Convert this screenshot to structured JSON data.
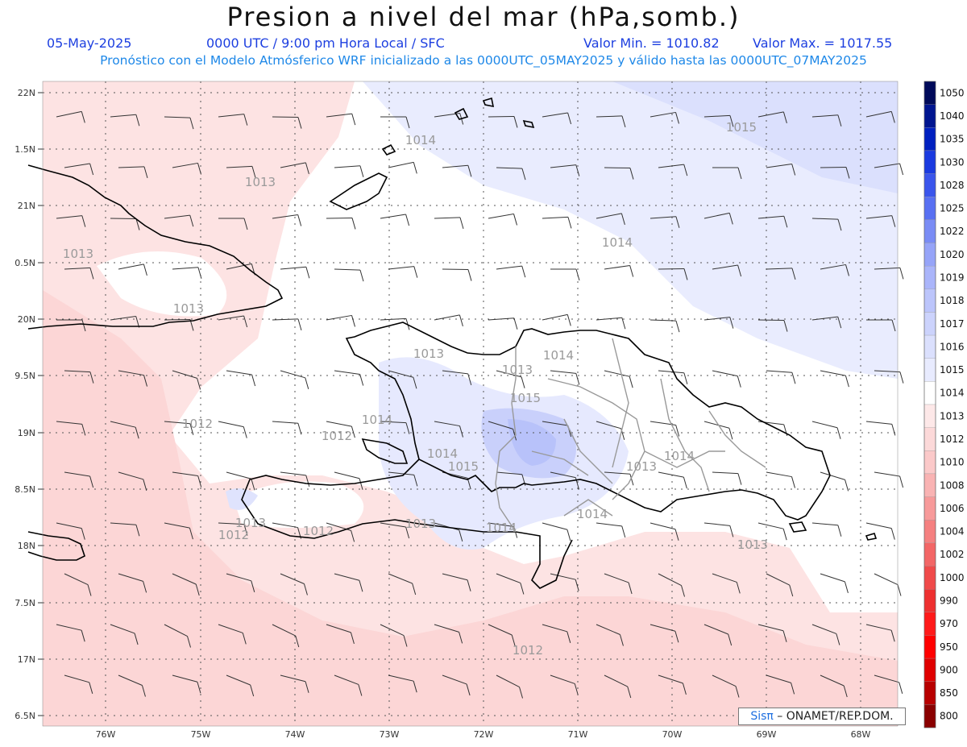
{
  "header": {
    "title": "Presion a nivel del mar (hPa,somb.)",
    "date": "05-May-2025",
    "time": "0000 UTC / 9:00 pm Hora Local / SFC",
    "min_label": "Valor Min. = 1010.82",
    "max_label": "Valor Max. = 1017.55",
    "info": "Pronóstico con el Modelo Atmósferico WRF inicializado a las 0000UTC_05MAY2025 y válido hasta las  0000UTC_07MAY2025"
  },
  "axes": {
    "lat_labels": [
      "22N",
      "1.5N",
      "21N",
      "0.5N",
      "20N",
      "9.5N",
      "19N",
      "8.5N",
      "18N",
      "7.5N",
      "17N",
      "6.5N"
    ],
    "lon_labels": [
      "76W",
      "75W",
      "74W",
      "73W",
      "72W",
      "71W",
      "70W",
      "69W",
      "68W"
    ]
  },
  "colorbar": {
    "labels": [
      "1050",
      "1040",
      "1035",
      "1030",
      "1028",
      "1025",
      "1022",
      "1020",
      "1019",
      "1018",
      "1017",
      "1016",
      "1015",
      "1014",
      "1013",
      "1012",
      "1010",
      "1008",
      "1006",
      "1004",
      "1002",
      "1000",
      "990",
      "970",
      "950",
      "900",
      "850",
      "800"
    ],
    "colors": [
      "#000a5a",
      "#001590",
      "#0020c0",
      "#1a3ae0",
      "#3a55ec",
      "#5870f2",
      "#7a8cf5",
      "#96a4f8",
      "#aab5fa",
      "#bcc5fb",
      "#ccd3fc",
      "#dbe0fd",
      "#e8ebfe",
      "#ffffff",
      "#fde8e8",
      "#fcd9d9",
      "#fbc9c9",
      "#f9b3b3",
      "#f79a9a",
      "#f58080",
      "#f36666",
      "#f04a4a",
      "#ee3030",
      "#ff1a1a",
      "#ff0000",
      "#e00000",
      "#b80000",
      "#8a0000"
    ]
  },
  "contour_labels": [
    {
      "text": "1014"
    },
    {
      "text": "1015"
    },
    {
      "text": "1013"
    },
    {
      "text": "1014"
    },
    {
      "text": "1013"
    },
    {
      "text": "1013"
    },
    {
      "text": "1013"
    },
    {
      "text": "1014"
    },
    {
      "text": "1013"
    },
    {
      "text": "1015"
    },
    {
      "text": "1014"
    },
    {
      "text": "1012"
    },
    {
      "text": "1012"
    },
    {
      "text": "1014"
    },
    {
      "text": "1015"
    },
    {
      "text": "1013"
    },
    {
      "text": "1014"
    },
    {
      "text": "1013"
    },
    {
      "text": "1012"
    },
    {
      "text": "1012"
    },
    {
      "text": "1013"
    },
    {
      "text": "1014"
    },
    {
      "text": "1014"
    },
    {
      "text": "1013"
    },
    {
      "text": "1012"
    }
  ],
  "credit": {
    "sis": "Sisπ",
    "rest": " – ONAMET/REP.DOM."
  }
}
